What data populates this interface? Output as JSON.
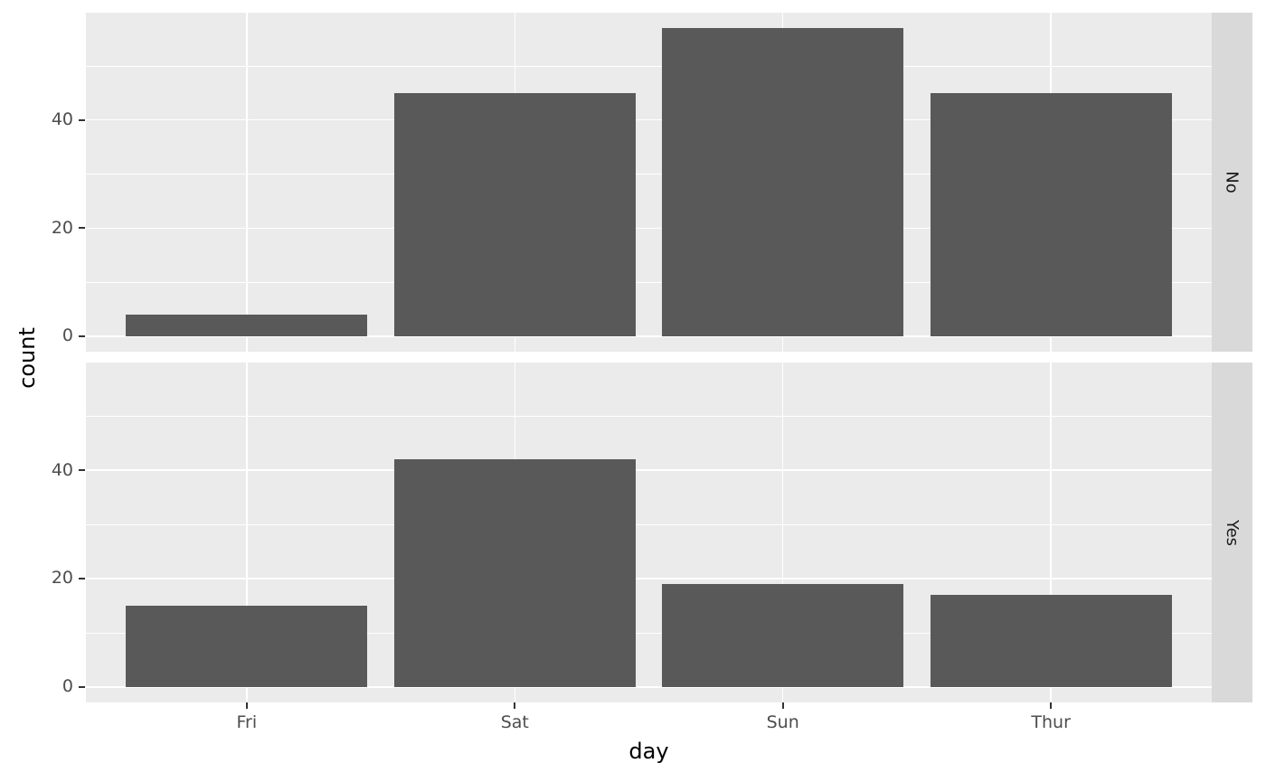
{
  "chart_data": {
    "type": "bar",
    "categories": [
      "Fri",
      "Sat",
      "Sun",
      "Thur"
    ],
    "series": [
      {
        "facet": "No",
        "values": [
          4,
          45,
          57,
          45
        ]
      },
      {
        "facet": "Yes",
        "values": [
          15,
          42,
          19,
          17
        ]
      }
    ],
    "title": "",
    "xlabel": "day",
    "ylabel": "count",
    "y_ticks_major": [
      0,
      20,
      40
    ],
    "y_ticks_minor": [
      10,
      30,
      50
    ],
    "y_data_max": 57,
    "ylim": [
      -2.85,
      59.85
    ],
    "grid": "on",
    "legend_position": "none",
    "facet_orientation": "rows-right-strip"
  },
  "colors": {
    "bar_fill": "#595959",
    "panel_background": "#EBEBEB",
    "strip_background": "#D9D9D9",
    "grid_major": "#FFFFFF",
    "grid_minor": "#FFFFFF",
    "axis_tick_label": "#4D4D4D",
    "axis_tick_mark": "#333333",
    "axis_title": "#000000",
    "strip_text": "#1A1A1A",
    "figure_background": "#FFFFFF"
  }
}
